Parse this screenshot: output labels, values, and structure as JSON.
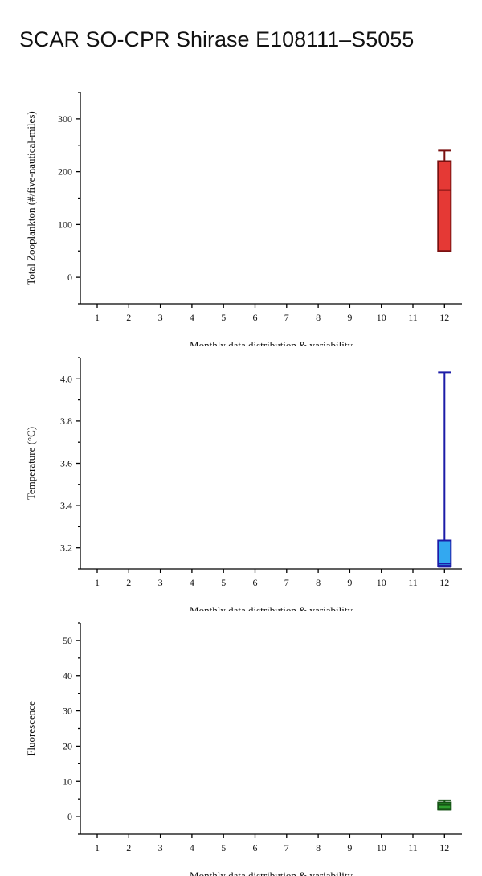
{
  "page_title": "SCAR SO-CPR Shirase E108111–S5055",
  "chart_data": [
    {
      "type": "box",
      "ylabel": "Total Zooplankton (#/five-nautical-miles)",
      "xlabel": "Monthly data distribution & variability",
      "categories": [
        "1",
        "2",
        "3",
        "4",
        "5",
        "6",
        "7",
        "8",
        "9",
        "10",
        "11",
        "12"
      ],
      "ylim": [
        -50,
        350
      ],
      "yticks": [
        0,
        100,
        200,
        300
      ],
      "minor_step": 50,
      "colors": {
        "fill": "#e53935",
        "stroke": "#7a1010"
      },
      "boxes": [
        {
          "month": 12,
          "min": 50,
          "q1": 50,
          "median": 165,
          "q3": 220,
          "max": 240
        }
      ]
    },
    {
      "type": "box",
      "ylabel": "Temperature (°C)",
      "xlabel": "Monthly data distribution & variability",
      "categories": [
        "1",
        "2",
        "3",
        "4",
        "5",
        "6",
        "7",
        "8",
        "9",
        "10",
        "11",
        "12"
      ],
      "ylim": [
        3.1,
        4.1
      ],
      "yticks": [
        3.2,
        3.4,
        3.6,
        3.8,
        4.0
      ],
      "tick_decimals": 1,
      "minor_step": 0.1,
      "colors": {
        "fill": "#33a8f0",
        "stroke": "#1c1ca8"
      },
      "boxes": [
        {
          "month": 12,
          "min": 3.11,
          "q1": 3.115,
          "median": 3.125,
          "q3": 3.235,
          "max": 4.03
        }
      ]
    },
    {
      "type": "box",
      "ylabel": "Fluorescence",
      "xlabel": "Monthly data distribution & variability",
      "categories": [
        "1",
        "2",
        "3",
        "4",
        "5",
        "6",
        "7",
        "8",
        "9",
        "10",
        "11",
        "12"
      ],
      "ylim": [
        -5,
        55
      ],
      "yticks": [
        0,
        10,
        20,
        30,
        40,
        50
      ],
      "minor_step": 5,
      "colors": {
        "fill": "#2e9e2e",
        "stroke": "#145214"
      },
      "boxes": [
        {
          "month": 12,
          "min": 2.0,
          "q1": 2.0,
          "median": 3.3,
          "q3": 4.0,
          "max": 4.6
        }
      ]
    }
  ]
}
